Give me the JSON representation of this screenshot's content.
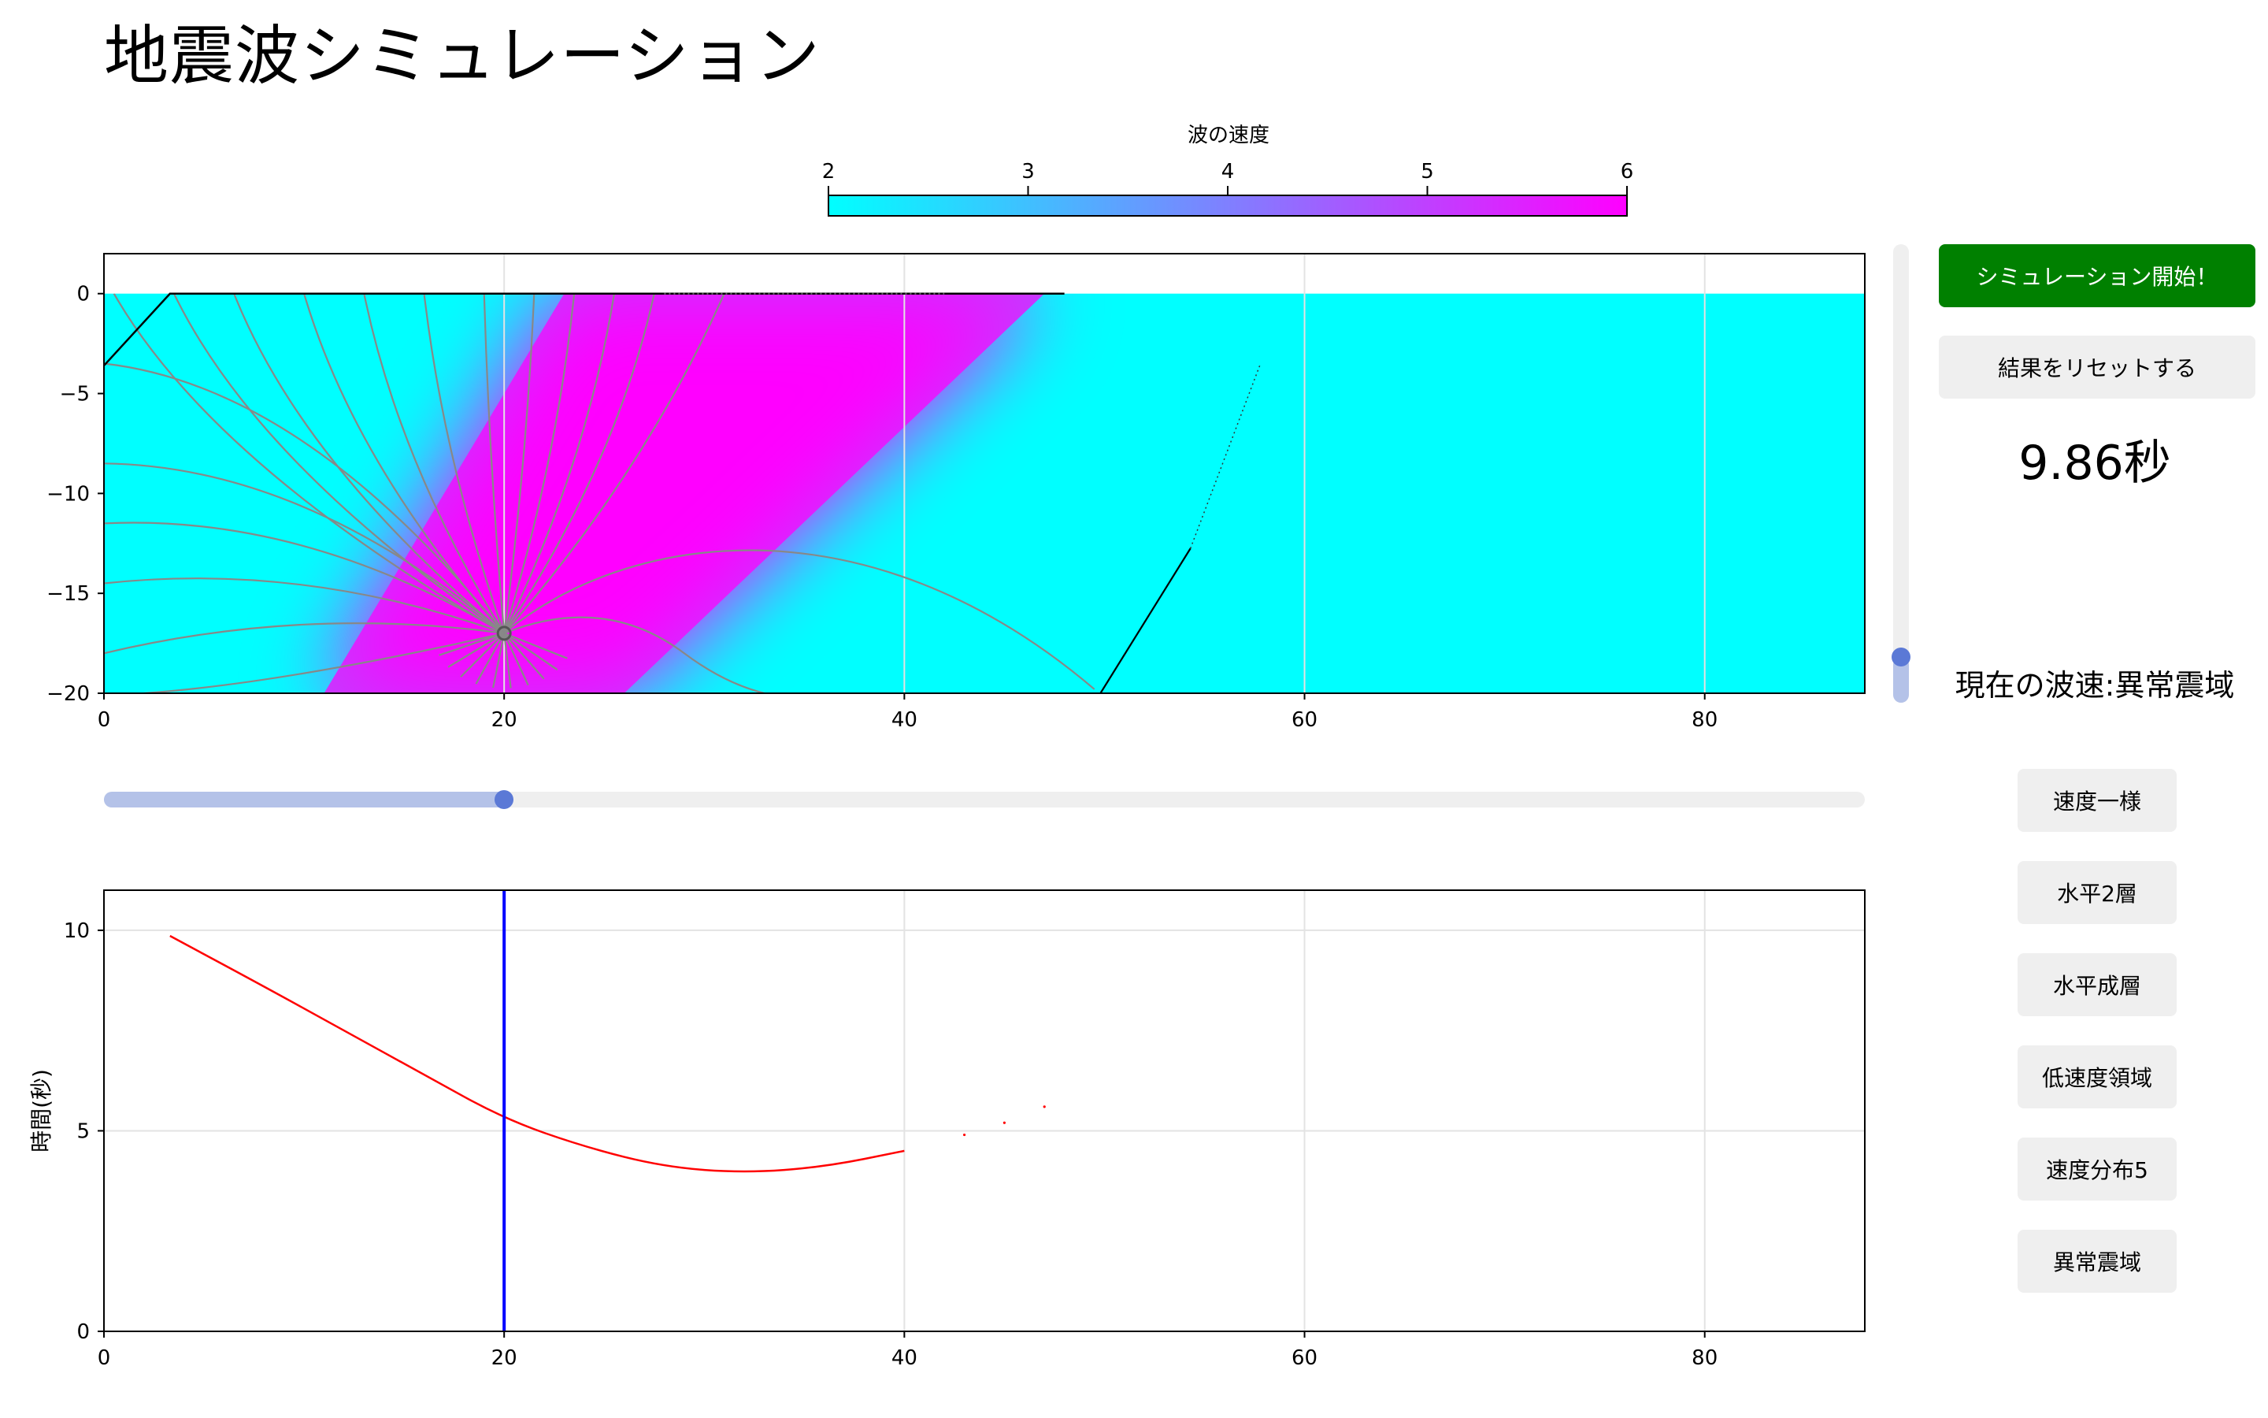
{
  "title": "地震波シミュレーション",
  "colorbar": {
    "label": "波の速度",
    "ticks": [
      "2",
      "3",
      "4",
      "5",
      "6"
    ],
    "min": 2,
    "max": 6,
    "color_low": "#00ffff",
    "color_high": "#ff00ff"
  },
  "controls": {
    "start_label": "シミュレーション開始！",
    "reset_label": "結果をリセットする",
    "time_readout": "9.86秒",
    "current_velocity": "現在の波速:異常震域",
    "presets": [
      "速度一様",
      "水平2層",
      "水平成層",
      "低速度領域",
      "速度分布5",
      "異常震域"
    ],
    "primary_color": "#008000",
    "slider_accent": "#5b79d6"
  },
  "source_slider": {
    "value": 20,
    "min": 0,
    "max": 88
  },
  "depth_slider": {
    "value_fraction": 0.1
  },
  "chart_data": [
    {
      "type": "heatmap",
      "x_ticks": [
        "0",
        "20",
        "40",
        "60",
        "80"
      ],
      "y_ticks": [
        "0",
        "−5",
        "−10",
        "−15",
        "−20"
      ],
      "xlim": [
        0,
        88
      ],
      "ylim": [
        -20,
        2
      ],
      "grid": true,
      "source": {
        "x": 20,
        "y": -17
      },
      "wavefront_polyline": [
        [
          0,
          -3.6
        ],
        [
          3.3,
          0
        ],
        [
          48,
          0
        ]
      ],
      "boundary_line": [
        [
          49.8,
          -20
        ],
        [
          57.8,
          -3.5
        ]
      ],
      "anomaly_band_low_edge": [
        [
          23,
          0
        ],
        [
          47,
          0
        ],
        [
          26,
          -20
        ],
        [
          11,
          -20
        ]
      ]
    },
    {
      "type": "line",
      "x_ticks": [
        "0",
        "20",
        "40",
        "60",
        "80"
      ],
      "y_ticks": [
        "0",
        "5",
        "10"
      ],
      "ylabel": "時間(秒)",
      "xlim": [
        0,
        88
      ],
      "ylim": [
        0,
        11
      ],
      "grid": true,
      "series": [
        {
          "color": "#ff0000",
          "points": [
            [
              3.3,
              9.86
            ],
            [
              8,
              8.6
            ],
            [
              12,
              7.5
            ],
            [
              16,
              6.4
            ],
            [
              20,
              5.3
            ],
            [
              24,
              4.6
            ],
            [
              28,
              4.1
            ],
            [
              32,
              3.95
            ],
            [
              36,
              4.1
            ],
            [
              40,
              4.5
            ],
            [
              43,
              4.9
            ],
            [
              45,
              5.2
            ],
            [
              47,
              5.6
            ]
          ]
        }
      ],
      "cursor_x": 20,
      "cursor_color": "#0000ff"
    }
  ]
}
